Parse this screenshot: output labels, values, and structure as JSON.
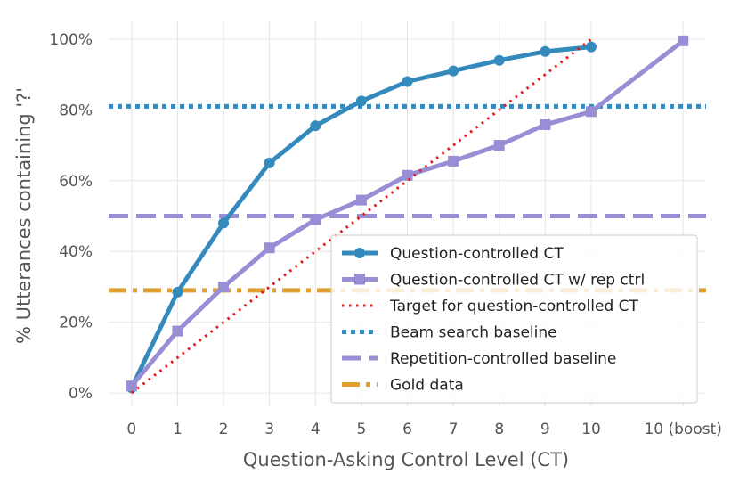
{
  "chart_data": {
    "type": "line",
    "xlabel": "Question-Asking Control Level (CT)",
    "ylabel": "% Utterances containing '?'",
    "x_ticks": [
      {
        "x": 0,
        "label": "0"
      },
      {
        "x": 1,
        "label": "1"
      },
      {
        "x": 2,
        "label": "2"
      },
      {
        "x": 3,
        "label": "3"
      },
      {
        "x": 4,
        "label": "4"
      },
      {
        "x": 5,
        "label": "5"
      },
      {
        "x": 6,
        "label": "6"
      },
      {
        "x": 7,
        "label": "7"
      },
      {
        "x": 8,
        "label": "8"
      },
      {
        "x": 9,
        "label": "9"
      },
      {
        "x": 10,
        "label": "10"
      },
      {
        "x": 12,
        "label": "10 (boost)"
      }
    ],
    "y_ticks": [
      {
        "y": 0,
        "label": "0%"
      },
      {
        "y": 20,
        "label": "20%"
      },
      {
        "y": 40,
        "label": "40%"
      },
      {
        "y": 60,
        "label": "60%"
      },
      {
        "y": 80,
        "label": "80%"
      },
      {
        "y": 100,
        "label": "100%"
      }
    ],
    "xlim": [
      -0.5,
      12.5
    ],
    "ylim": [
      -4,
      105
    ],
    "grid": true,
    "legend_position": "lower-right",
    "series": [
      {
        "name": "Question-controlled CT",
        "color": "#348ABD",
        "style": "solid",
        "marker": "circle",
        "x": [
          0,
          1,
          2,
          3,
          4,
          5,
          6,
          7,
          8,
          9,
          10
        ],
        "y": [
          1.5,
          28.5,
          48,
          65,
          75.5,
          82.5,
          88,
          91,
          94,
          96.5,
          97.8
        ]
      },
      {
        "name": "Question-controlled CT w/ rep ctrl",
        "color": "#988ED5",
        "style": "solid",
        "marker": "square",
        "x": [
          0,
          1,
          2,
          3,
          4,
          5,
          6,
          7,
          8,
          9,
          10,
          12
        ],
        "y": [
          2,
          17.5,
          30,
          41,
          49,
          54.5,
          61.5,
          65.5,
          70,
          75.8,
          79.5,
          99.5
        ]
      },
      {
        "name": "Target for question-controlled CT",
        "color": "#E41A1C",
        "style": "dotted",
        "marker": "none",
        "x": [
          0,
          10
        ],
        "y": [
          0,
          100
        ]
      },
      {
        "name": "Beam search baseline",
        "color": "#348ABD",
        "style": "dotted-thick",
        "marker": "none",
        "hline": 81
      },
      {
        "name": "Repetition-controlled baseline",
        "color": "#988ED5",
        "style": "dashed",
        "marker": "none",
        "hline": 50
      },
      {
        "name": "Gold data",
        "color": "#E0A030",
        "style": "dashdot",
        "marker": "none",
        "hline": 29
      }
    ]
  }
}
